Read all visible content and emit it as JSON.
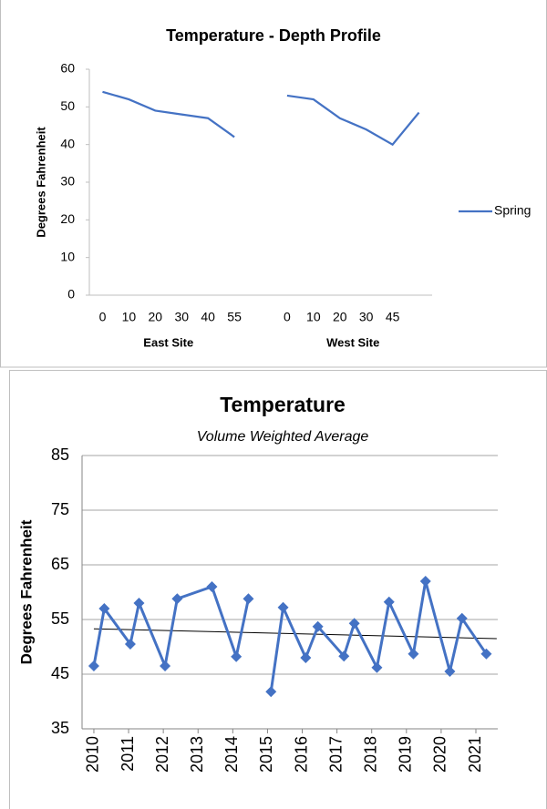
{
  "chart_data": [
    {
      "type": "line",
      "title": "Temperature - Depth Profile",
      "y_label": "Degrees Fahrenheit",
      "categories": [
        "0",
        "10",
        "20",
        "30",
        "40",
        "55",
        null,
        "0",
        "10",
        "20",
        "30",
        "45",
        null
      ],
      "group_labels": [
        "East Site",
        "West Site"
      ],
      "series": [
        {
          "name": "Spring",
          "color": "#4472c4",
          "values": [
            54,
            52,
            49,
            48,
            47,
            42,
            null,
            53,
            52,
            47,
            44,
            40,
            48.5
          ]
        }
      ],
      "ylim": [
        0,
        60
      ],
      "yticks": [
        0,
        10,
        20,
        30,
        40,
        50,
        60
      ],
      "grid": false,
      "legend": "right"
    },
    {
      "type": "line",
      "title": "Temperature",
      "subtitle": "Volume Weighted Average",
      "y_label": "Degrees Fahrenheit",
      "series": [
        {
          "color": "#4472c4",
          "marker": "diamond",
          "x": [
            2010.0,
            2010.3,
            2011.05,
            2011.3,
            2012.05,
            2012.4,
            2013.4,
            2014.1,
            2014.45,
            null,
            2015.1,
            2015.45,
            2016.1,
            2016.45,
            2017.2,
            2017.5,
            2018.15,
            2018.5,
            2019.2,
            2019.55,
            2020.25,
            2020.6,
            2021.3
          ],
          "values": [
            46.5,
            57.0,
            50.5,
            58.0,
            46.5,
            58.8,
            61.0,
            48.2,
            58.8,
            null,
            41.8,
            57.2,
            48.0,
            53.7,
            48.3,
            54.3,
            46.2,
            58.2,
            48.7,
            62.0,
            45.5,
            55.2,
            48.7
          ]
        }
      ],
      "trend": {
        "color": "#000000",
        "x": [
          2010.0,
          2021.6
        ],
        "values": [
          53.3,
          51.5
        ]
      },
      "xlim": [
        2009.66,
        2021.63
      ],
      "xticks": [
        2010,
        2011,
        2012,
        2013,
        2014,
        2015,
        2016,
        2017,
        2018,
        2019,
        2020,
        2021
      ],
      "ylim": [
        35,
        85
      ],
      "yticks": [
        35,
        45,
        55,
        65,
        75,
        85
      ],
      "grid": true
    }
  ]
}
